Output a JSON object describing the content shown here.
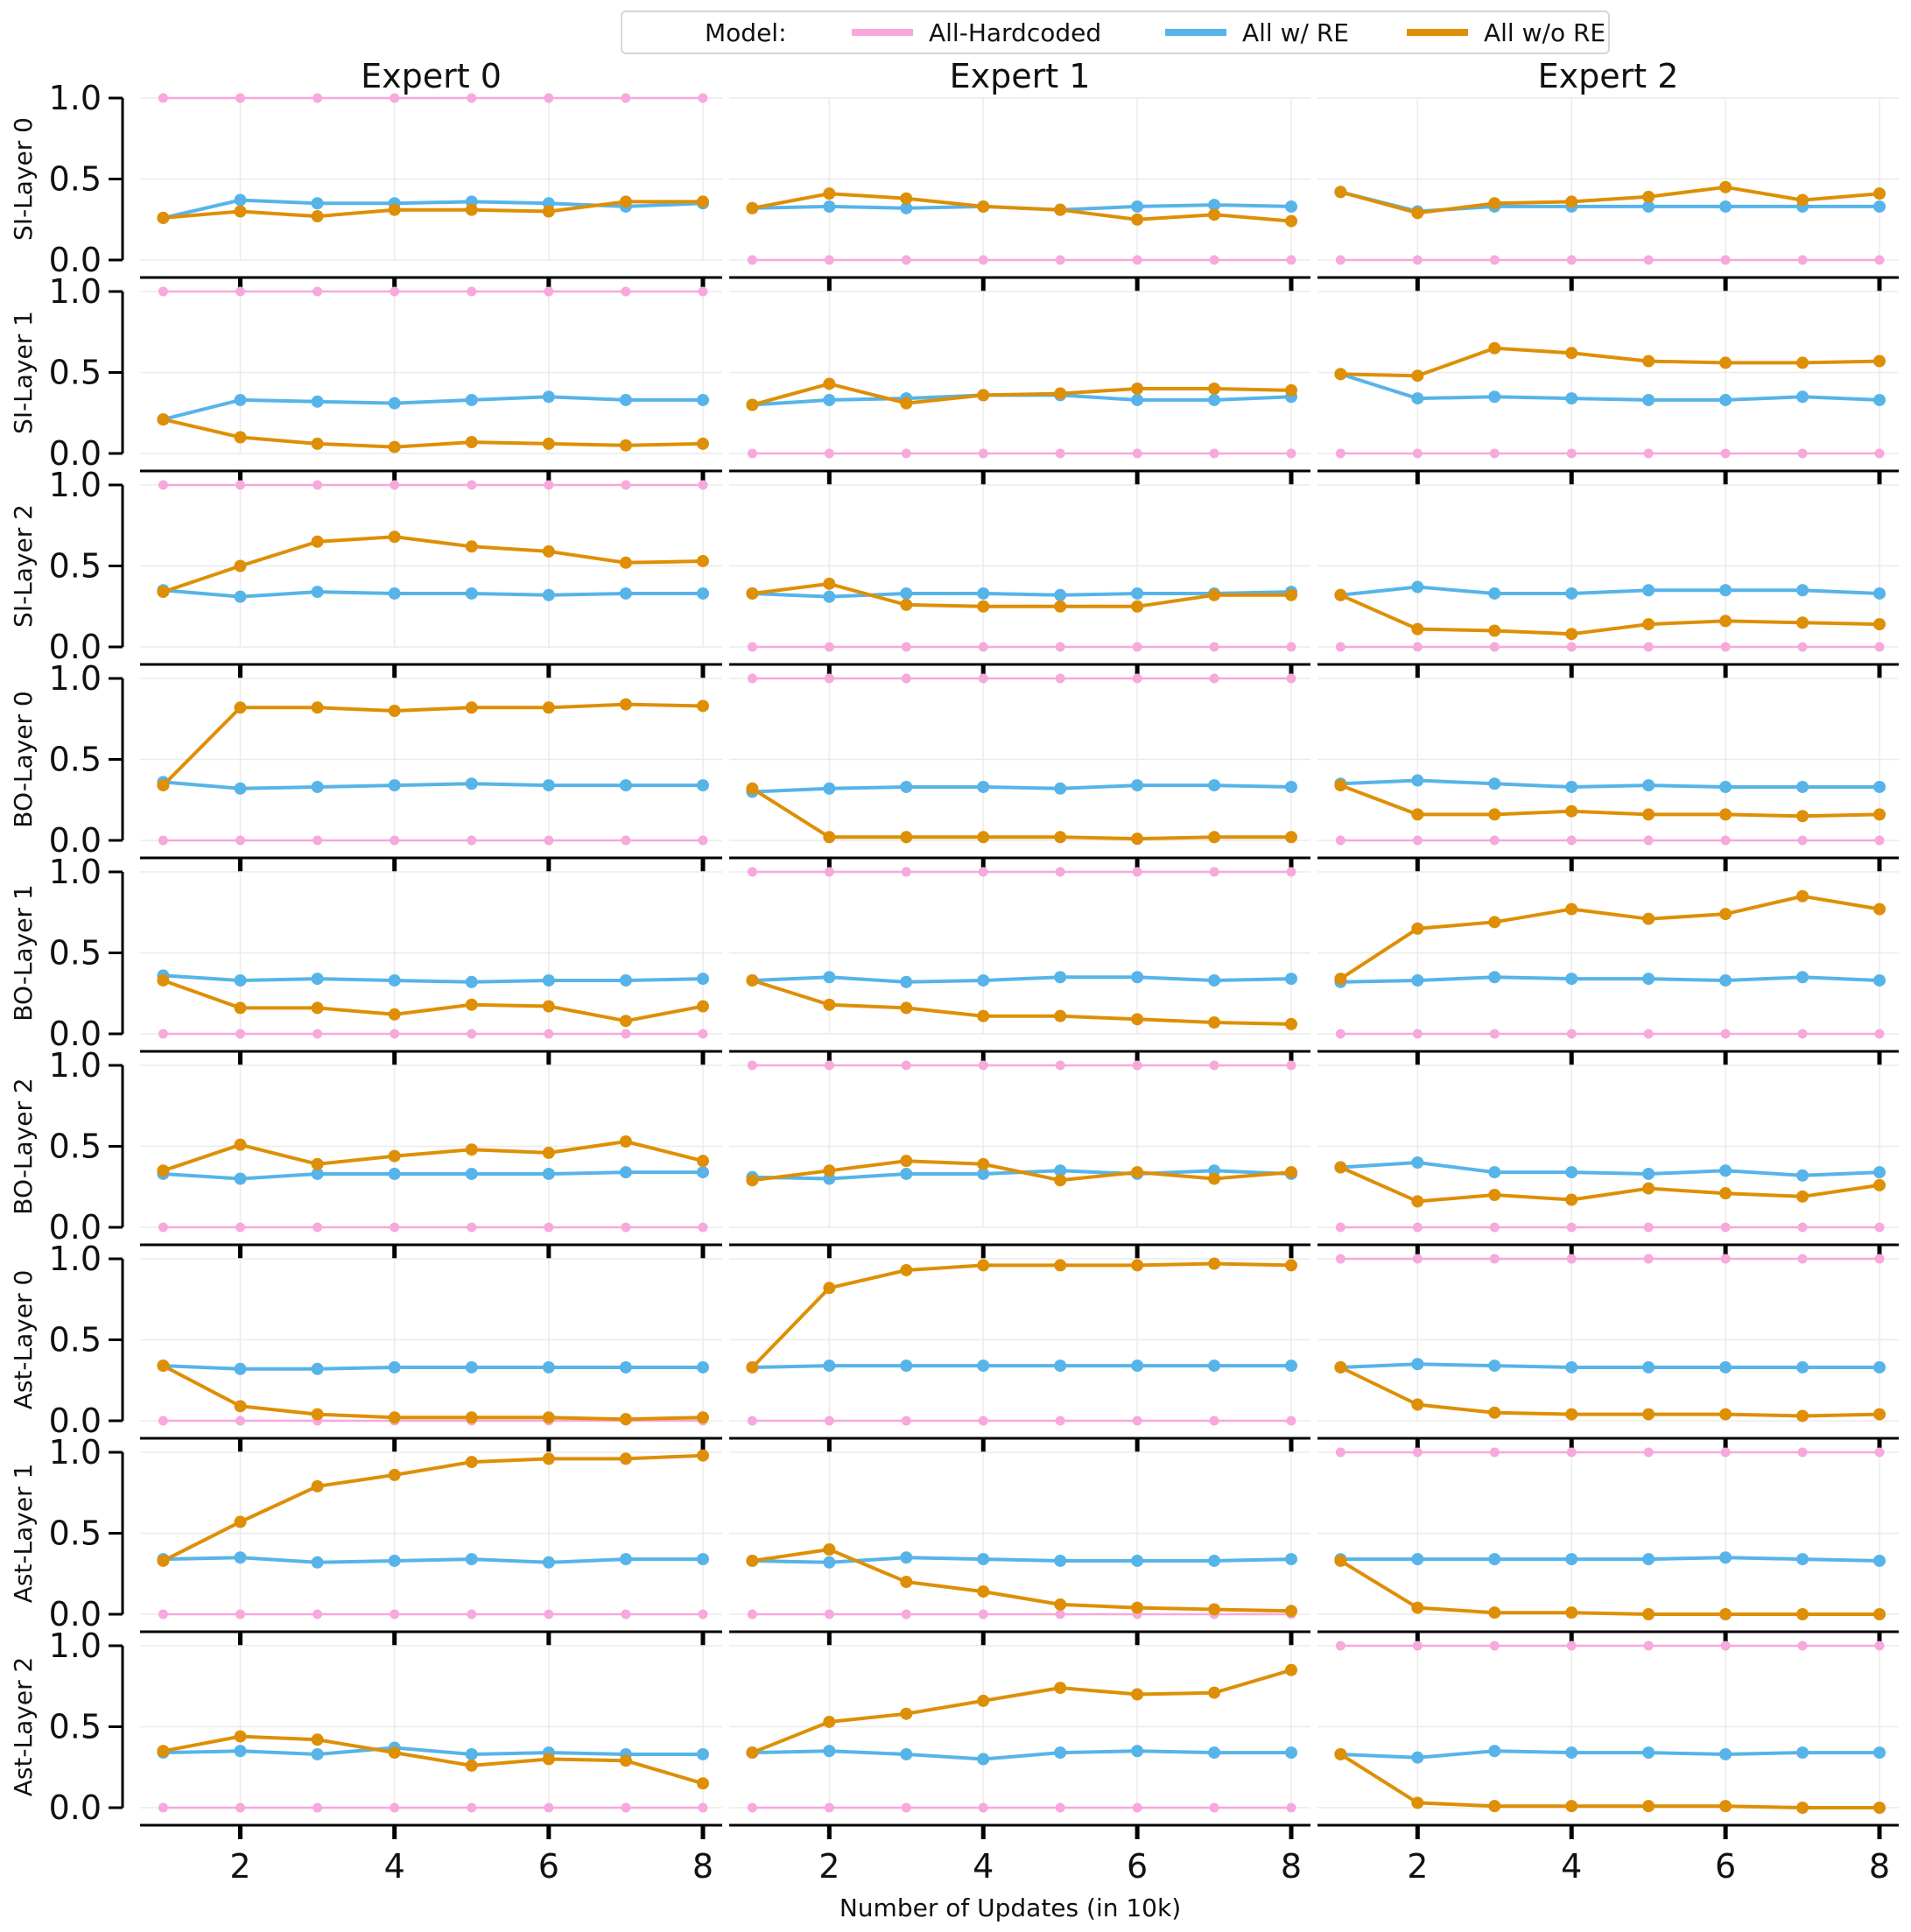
{
  "legend": {
    "title": "Model:",
    "entries": [
      {
        "label": "All-Hardcoded",
        "color": "#f7a8dc"
      },
      {
        "label": "All w/ RE",
        "color": "#56b4e9"
      },
      {
        "label": "All w/o RE",
        "color": "#de8f05"
      }
    ]
  },
  "chart_data": {
    "type": "line",
    "title": "",
    "xlabel": "Number of Updates (in 10k)",
    "x": [
      1,
      2,
      3,
      4,
      5,
      6,
      7,
      8
    ],
    "xticks": [
      2,
      4,
      6,
      8
    ],
    "xlim": [
      0.7,
      8.25
    ],
    "ylim": [
      0.0,
      1.0
    ],
    "yticks": [
      "0.0",
      "0.5",
      "1.0"
    ],
    "columns": [
      "Expert 0",
      "Expert 1",
      "Expert 2"
    ],
    "rows": [
      "SI-Layer 0",
      "SI-Layer 1",
      "SI-Layer 2",
      "BO-Layer 0",
      "BO-Layer 1",
      "BO-Layer 2",
      "Ast-Layer 0",
      "Ast-Layer 1",
      "Ast-Layer 2"
    ],
    "series_names": [
      "All-Hardcoded",
      "All w/ RE",
      "All w/o RE"
    ],
    "series_colors": [
      "#f7a8dc",
      "#56b4e9",
      "#de8f05"
    ],
    "panels": [
      [
        {
          "hard": [
            1,
            1,
            1,
            1,
            1,
            1,
            1,
            1
          ],
          "re": [
            0.26,
            0.37,
            0.35,
            0.35,
            0.36,
            0.35,
            0.33,
            0.35
          ],
          "nore": [
            0.26,
            0.3,
            0.27,
            0.31,
            0.31,
            0.3,
            0.36,
            0.36
          ]
        },
        {
          "hard": [
            0,
            0,
            0,
            0,
            0,
            0,
            0,
            0
          ],
          "re": [
            0.32,
            0.33,
            0.32,
            0.33,
            0.31,
            0.33,
            0.34,
            0.33
          ],
          "nore": [
            0.32,
            0.41,
            0.38,
            0.33,
            0.31,
            0.25,
            0.28,
            0.24
          ]
        },
        {
          "hard": [
            0,
            0,
            0,
            0,
            0,
            0,
            0,
            0
          ],
          "re": [
            0.42,
            0.3,
            0.33,
            0.33,
            0.33,
            0.33,
            0.33,
            0.33
          ],
          "nore": [
            0.42,
            0.29,
            0.35,
            0.36,
            0.39,
            0.45,
            0.37,
            0.41
          ]
        }
      ],
      [
        {
          "hard": [
            1,
            1,
            1,
            1,
            1,
            1,
            1,
            1
          ],
          "re": [
            0.21,
            0.33,
            0.32,
            0.31,
            0.33,
            0.35,
            0.33,
            0.33
          ],
          "nore": [
            0.21,
            0.1,
            0.06,
            0.04,
            0.07,
            0.06,
            0.05,
            0.06
          ]
        },
        {
          "hard": [
            0,
            0,
            0,
            0,
            0,
            0,
            0,
            0
          ],
          "re": [
            0.3,
            0.33,
            0.34,
            0.36,
            0.36,
            0.33,
            0.33,
            0.35
          ],
          "nore": [
            0.3,
            0.43,
            0.31,
            0.36,
            0.37,
            0.4,
            0.4,
            0.39
          ]
        },
        {
          "hard": [
            0,
            0,
            0,
            0,
            0,
            0,
            0,
            0
          ],
          "re": [
            0.49,
            0.34,
            0.35,
            0.34,
            0.33,
            0.33,
            0.35,
            0.33
          ],
          "nore": [
            0.49,
            0.48,
            0.65,
            0.62,
            0.57,
            0.56,
            0.56,
            0.57
          ]
        }
      ],
      [
        {
          "hard": [
            1,
            1,
            1,
            1,
            1,
            1,
            1,
            1
          ],
          "re": [
            0.35,
            0.31,
            0.34,
            0.33,
            0.33,
            0.32,
            0.33,
            0.33
          ],
          "nore": [
            0.34,
            0.5,
            0.65,
            0.68,
            0.62,
            0.59,
            0.52,
            0.53
          ]
        },
        {
          "hard": [
            0,
            0,
            0,
            0,
            0,
            0,
            0,
            0
          ],
          "re": [
            0.33,
            0.31,
            0.33,
            0.33,
            0.32,
            0.33,
            0.33,
            0.34
          ],
          "nore": [
            0.33,
            0.39,
            0.26,
            0.25,
            0.25,
            0.25,
            0.32,
            0.32
          ]
        },
        {
          "hard": [
            0,
            0,
            0,
            0,
            0,
            0,
            0,
            0
          ],
          "re": [
            0.32,
            0.37,
            0.33,
            0.33,
            0.35,
            0.35,
            0.35,
            0.33
          ],
          "nore": [
            0.32,
            0.11,
            0.1,
            0.08,
            0.14,
            0.16,
            0.15,
            0.14
          ]
        }
      ],
      [
        {
          "hard": [
            0,
            0,
            0,
            0,
            0,
            0,
            0,
            0
          ],
          "re": [
            0.36,
            0.32,
            0.33,
            0.34,
            0.35,
            0.34,
            0.34,
            0.34
          ],
          "nore": [
            0.34,
            0.82,
            0.82,
            0.8,
            0.82,
            0.82,
            0.84,
            0.83
          ]
        },
        {
          "hard": [
            1,
            1,
            1,
            1,
            1,
            1,
            1,
            1
          ],
          "re": [
            0.3,
            0.32,
            0.33,
            0.33,
            0.32,
            0.34,
            0.34,
            0.33
          ],
          "nore": [
            0.32,
            0.02,
            0.02,
            0.02,
            0.02,
            0.01,
            0.02,
            0.02
          ]
        },
        {
          "hard": [
            0,
            0,
            0,
            0,
            0,
            0,
            0,
            0
          ],
          "re": [
            0.35,
            0.37,
            0.35,
            0.33,
            0.34,
            0.33,
            0.33,
            0.33
          ],
          "nore": [
            0.34,
            0.16,
            0.16,
            0.18,
            0.16,
            0.16,
            0.15,
            0.16
          ]
        }
      ],
      [
        {
          "hard": [
            0,
            0,
            0,
            0,
            0,
            0,
            0,
            0
          ],
          "re": [
            0.36,
            0.33,
            0.34,
            0.33,
            0.32,
            0.33,
            0.33,
            0.34
          ],
          "nore": [
            0.33,
            0.16,
            0.16,
            0.12,
            0.18,
            0.17,
            0.08,
            0.17
          ]
        },
        {
          "hard": [
            1,
            1,
            1,
            1,
            1,
            1,
            1,
            1
          ],
          "re": [
            0.33,
            0.35,
            0.32,
            0.33,
            0.35,
            0.35,
            0.33,
            0.34
          ],
          "nore": [
            0.33,
            0.18,
            0.16,
            0.11,
            0.11,
            0.09,
            0.07,
            0.06
          ]
        },
        {
          "hard": [
            0,
            0,
            0,
            0,
            0,
            0,
            0,
            0
          ],
          "re": [
            0.32,
            0.33,
            0.35,
            0.34,
            0.34,
            0.33,
            0.35,
            0.33
          ],
          "nore": [
            0.34,
            0.65,
            0.69,
            0.77,
            0.71,
            0.74,
            0.85,
            0.77
          ]
        }
      ],
      [
        {
          "hard": [
            0,
            0,
            0,
            0,
            0,
            0,
            0,
            0
          ],
          "re": [
            0.33,
            0.3,
            0.33,
            0.33,
            0.33,
            0.33,
            0.34,
            0.34
          ],
          "nore": [
            0.35,
            0.51,
            0.39,
            0.44,
            0.48,
            0.46,
            0.53,
            0.41
          ]
        },
        {
          "hard": [
            1,
            1,
            1,
            1,
            1,
            1,
            1,
            1
          ],
          "re": [
            0.31,
            0.3,
            0.33,
            0.33,
            0.35,
            0.33,
            0.35,
            0.33
          ],
          "nore": [
            0.29,
            0.35,
            0.41,
            0.39,
            0.29,
            0.34,
            0.3,
            0.34
          ]
        },
        {
          "hard": [
            0,
            0,
            0,
            0,
            0,
            0,
            0,
            0
          ],
          "re": [
            0.37,
            0.4,
            0.34,
            0.34,
            0.33,
            0.35,
            0.32,
            0.34
          ],
          "nore": [
            0.37,
            0.16,
            0.2,
            0.17,
            0.24,
            0.21,
            0.19,
            0.26
          ]
        }
      ],
      [
        {
          "hard": [
            0,
            0,
            0,
            0,
            0,
            0,
            0,
            0
          ],
          "re": [
            0.34,
            0.32,
            0.32,
            0.33,
            0.33,
            0.33,
            0.33,
            0.33
          ],
          "nore": [
            0.34,
            0.09,
            0.04,
            0.02,
            0.02,
            0.02,
            0.01,
            0.02
          ]
        },
        {
          "hard": [
            0,
            0,
            0,
            0,
            0,
            0,
            0,
            0
          ],
          "re": [
            0.33,
            0.34,
            0.34,
            0.34,
            0.34,
            0.34,
            0.34,
            0.34
          ],
          "nore": [
            0.33,
            0.82,
            0.93,
            0.96,
            0.96,
            0.96,
            0.97,
            0.96
          ]
        },
        {
          "hard": [
            1,
            1,
            1,
            1,
            1,
            1,
            1,
            1
          ],
          "re": [
            0.33,
            0.35,
            0.34,
            0.33,
            0.33,
            0.33,
            0.33,
            0.33
          ],
          "nore": [
            0.33,
            0.1,
            0.05,
            0.04,
            0.04,
            0.04,
            0.03,
            0.04
          ]
        }
      ],
      [
        {
          "hard": [
            0,
            0,
            0,
            0,
            0,
            0,
            0,
            0
          ],
          "re": [
            0.34,
            0.35,
            0.32,
            0.33,
            0.34,
            0.32,
            0.34,
            0.34
          ],
          "nore": [
            0.33,
            0.57,
            0.79,
            0.86,
            0.94,
            0.96,
            0.96,
            0.98
          ]
        },
        {
          "hard": [
            0,
            0,
            0,
            0,
            0,
            0,
            0,
            0
          ],
          "re": [
            0.33,
            0.32,
            0.35,
            0.34,
            0.33,
            0.33,
            0.33,
            0.34
          ],
          "nore": [
            0.33,
            0.4,
            0.2,
            0.14,
            0.06,
            0.04,
            0.03,
            0.02
          ]
        },
        {
          "hard": [
            1,
            1,
            1,
            1,
            1,
            1,
            1,
            1
          ],
          "re": [
            0.34,
            0.34,
            0.34,
            0.34,
            0.34,
            0.35,
            0.34,
            0.33
          ],
          "nore": [
            0.33,
            0.04,
            0.01,
            0.01,
            0.0,
            0.0,
            0.0,
            0.0
          ]
        }
      ],
      [
        {
          "hard": [
            0,
            0,
            0,
            0,
            0,
            0,
            0,
            0
          ],
          "re": [
            0.34,
            0.35,
            0.33,
            0.37,
            0.33,
            0.34,
            0.33,
            0.33
          ],
          "nore": [
            0.35,
            0.44,
            0.42,
            0.34,
            0.26,
            0.3,
            0.29,
            0.15
          ]
        },
        {
          "hard": [
            0,
            0,
            0,
            0,
            0,
            0,
            0,
            0
          ],
          "re": [
            0.34,
            0.35,
            0.33,
            0.3,
            0.34,
            0.35,
            0.34,
            0.34
          ],
          "nore": [
            0.34,
            0.53,
            0.58,
            0.66,
            0.74,
            0.7,
            0.71,
            0.85
          ]
        },
        {
          "hard": [
            1,
            1,
            1,
            1,
            1,
            1,
            1,
            1
          ],
          "re": [
            0.33,
            0.31,
            0.35,
            0.34,
            0.34,
            0.33,
            0.34,
            0.34
          ],
          "nore": [
            0.33,
            0.03,
            0.01,
            0.01,
            0.01,
            0.01,
            0.0,
            0.0
          ]
        }
      ]
    ]
  }
}
